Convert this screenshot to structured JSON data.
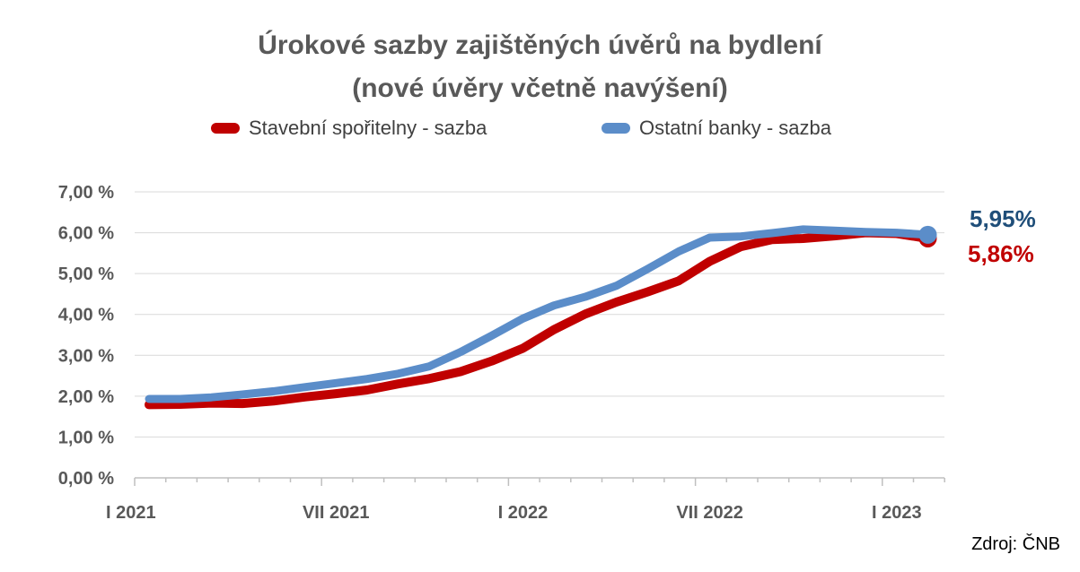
{
  "chart_data": {
    "type": "line",
    "title": "Úrokové sazby zajištěných úvěrů na bydlení",
    "subtitle": "(nové úvěry včetně navýšení)",
    "source": "Zdroj: ČNB",
    "x": [
      "I 2021",
      "II 2021",
      "III 2021",
      "IV 2021",
      "V 2021",
      "VI 2021",
      "VII 2021",
      "VIII 2021",
      "IX 2021",
      "X 2021",
      "XI 2021",
      "XII 2021",
      "I 2022",
      "II 2022",
      "III 2022",
      "IV 2022",
      "V 2022",
      "VI 2022",
      "VII 2022",
      "VIII 2022",
      "IX 2022",
      "X 2022",
      "XI 2022",
      "XII 2022",
      "I 2023",
      "II 2023"
    ],
    "x_tick_labels": [
      "I 2021",
      "VII 2021",
      "I 2022",
      "VII 2022",
      "I 2023"
    ],
    "y_tick_labels": [
      "0,00 %",
      "1,00 %",
      "2,00 %",
      "3,00 %",
      "4,00 %",
      "5,00 %",
      "6,00 %",
      "7,00 %"
    ],
    "ylim": [
      0,
      7
    ],
    "grid": true,
    "legend_position": "top",
    "series": [
      {
        "name": "Stavební spořitelny - sazba",
        "color": "#C00000",
        "values": [
          1.79,
          1.8,
          1.83,
          1.82,
          1.88,
          1.98,
          2.06,
          2.15,
          2.3,
          2.43,
          2.6,
          2.86,
          3.17,
          3.63,
          4.01,
          4.3,
          4.55,
          4.82,
          5.3,
          5.66,
          5.83,
          5.86,
          5.92,
          6.0,
          5.98,
          5.86
        ],
        "end_label": "5,86%"
      },
      {
        "name": "Ostatní banky - sazba",
        "color": "#5B8DC9",
        "values": [
          1.93,
          1.93,
          1.97,
          2.04,
          2.12,
          2.22,
          2.32,
          2.42,
          2.55,
          2.73,
          3.08,
          3.48,
          3.9,
          4.22,
          4.43,
          4.7,
          5.11,
          5.54,
          5.88,
          5.91,
          5.99,
          6.08,
          6.05,
          6.02,
          6.0,
          5.95
        ],
        "end_label": "5,95%",
        "end_label_color": "#1F4E79"
      }
    ]
  }
}
